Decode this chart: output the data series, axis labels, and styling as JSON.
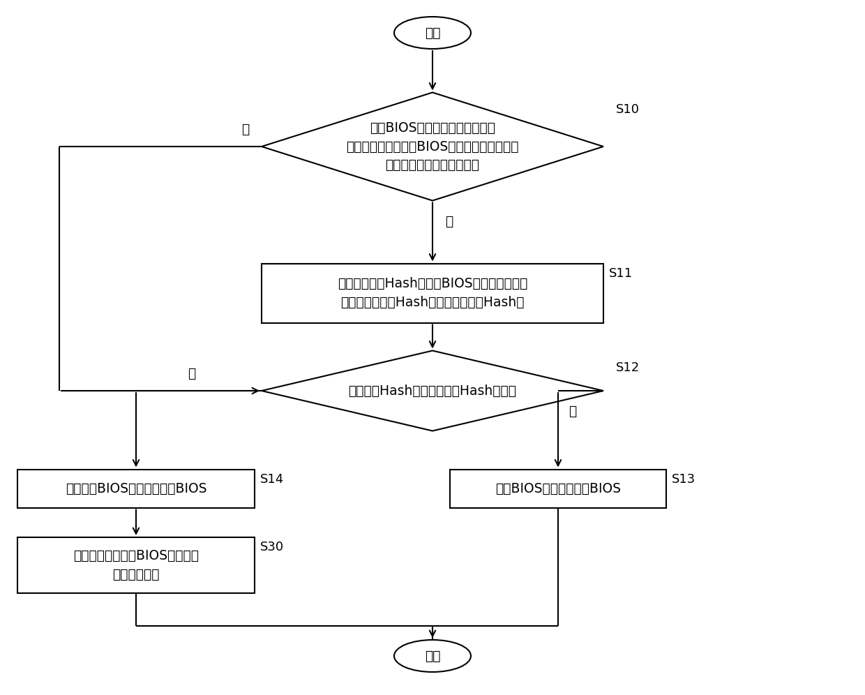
{
  "bg_color": "#ffffff",
  "line_color": "#000000",
  "text_color": "#000000",
  "font_size": 13.5,
  "font_size_label": 13,
  "start_text": "开始",
  "end_text": "结束",
  "s10_text": "获取BIOS镜像文件后，判断预先\n约定的密钥是否能对BIOS镜像文件的第二区域\n中存储的第二密文进行解密",
  "s11_text": "解密得到第一Hash值，对BIOS镜像文件的第一\n区域的数据进行Hash计算，得到第二Hash值",
  "s12_text": "判断第二Hash值是否与第一Hash值相同",
  "s14_text": "禁止应用BIOS镜像文件刷新BIOS",
  "s30_text": "向管理服务器发送BIOS镜像文件\n不合法的提示",
  "s13_text": "应用BIOS镜像文件刷新BIOS",
  "yes_text": "是",
  "no_text": "否",
  "s10_label": "S10",
  "s11_label": "S11",
  "s12_label": "S12",
  "s13_label": "S13",
  "s14_label": "S14",
  "s30_label": "S30"
}
